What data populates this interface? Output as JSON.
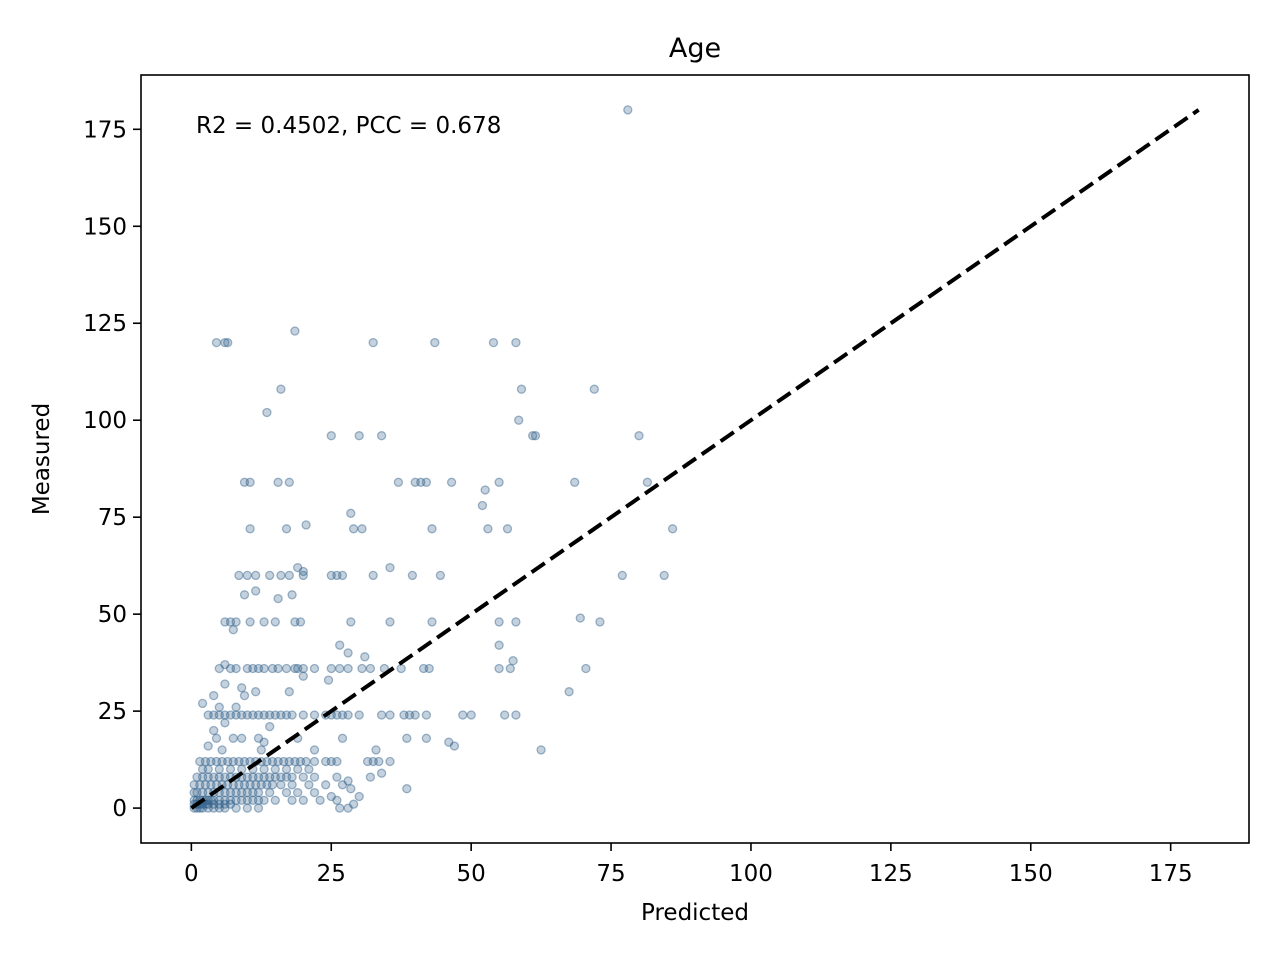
{
  "chart_data": {
    "type": "scatter",
    "title": "Age",
    "xlabel": "Predicted",
    "ylabel": "Measured",
    "xlim": [
      -9,
      189
    ],
    "ylim": [
      -9,
      189
    ],
    "xticks": [
      0,
      25,
      50,
      75,
      100,
      125,
      150,
      175
    ],
    "yticks": [
      0,
      25,
      50,
      75,
      100,
      125,
      150,
      175
    ],
    "annotation": "R2 = 0.4502, PCC = 0.678",
    "grid": false,
    "legend": "none",
    "point_color": "#2e5f8a",
    "reference_line": {
      "style": "dashed",
      "color": "#000000",
      "from": [
        0,
        0
      ],
      "to": [
        180,
        180
      ]
    },
    "series": [
      {
        "points": [
          [
            78,
            180
          ],
          [
            4.5,
            120
          ],
          [
            6,
            120
          ],
          [
            6.5,
            120
          ],
          [
            18.5,
            123
          ],
          [
            32.5,
            120
          ],
          [
            43.5,
            120
          ],
          [
            54,
            120
          ],
          [
            58,
            120
          ],
          [
            16,
            108
          ],
          [
            59,
            108
          ],
          [
            72,
            108
          ],
          [
            13.5,
            102
          ],
          [
            58.5,
            100
          ],
          [
            25,
            96
          ],
          [
            30,
            96
          ],
          [
            34,
            96
          ],
          [
            61,
            96
          ],
          [
            61.5,
            96
          ],
          [
            80,
            96
          ],
          [
            9.5,
            84
          ],
          [
            10.5,
            84
          ],
          [
            15.5,
            84
          ],
          [
            17.5,
            84
          ],
          [
            37,
            84
          ],
          [
            40,
            84
          ],
          [
            41,
            84
          ],
          [
            42,
            84
          ],
          [
            46.5,
            84
          ],
          [
            55,
            84
          ],
          [
            68.5,
            84
          ],
          [
            81.5,
            84
          ],
          [
            52.5,
            82
          ],
          [
            52,
            78
          ],
          [
            28.5,
            76
          ],
          [
            10.5,
            72
          ],
          [
            17,
            72
          ],
          [
            20.5,
            73
          ],
          [
            29,
            72
          ],
          [
            30.5,
            72
          ],
          [
            43,
            72
          ],
          [
            53,
            72
          ],
          [
            56.5,
            72
          ],
          [
            86,
            72
          ],
          [
            19,
            62
          ],
          [
            20,
            61
          ],
          [
            35.5,
            62
          ],
          [
            8.5,
            60
          ],
          [
            10,
            60
          ],
          [
            11.5,
            60
          ],
          [
            14,
            60
          ],
          [
            16,
            60
          ],
          [
            17.5,
            60
          ],
          [
            20,
            60
          ],
          [
            25,
            60
          ],
          [
            26,
            60
          ],
          [
            27,
            60
          ],
          [
            32.5,
            60
          ],
          [
            39.5,
            60
          ],
          [
            44.5,
            60
          ],
          [
            77,
            60
          ],
          [
            84.5,
            60
          ],
          [
            11.5,
            56
          ],
          [
            9.5,
            55
          ],
          [
            18,
            55
          ],
          [
            15.5,
            54
          ],
          [
            6,
            48
          ],
          [
            7,
            48
          ],
          [
            8,
            48
          ],
          [
            10.5,
            48
          ],
          [
            13,
            48
          ],
          [
            15,
            48
          ],
          [
            18.5,
            48
          ],
          [
            19.5,
            48
          ],
          [
            28.5,
            48
          ],
          [
            35.5,
            48
          ],
          [
            43,
            48
          ],
          [
            55,
            48
          ],
          [
            58,
            48
          ],
          [
            69.5,
            49
          ],
          [
            73,
            48
          ],
          [
            7.5,
            46
          ],
          [
            26.5,
            42
          ],
          [
            55,
            42
          ],
          [
            28,
            40
          ],
          [
            31,
            39
          ],
          [
            57.5,
            38
          ],
          [
            5,
            36
          ],
          [
            6,
            37
          ],
          [
            7,
            36
          ],
          [
            8,
            36
          ],
          [
            10,
            36
          ],
          [
            11,
            36
          ],
          [
            12,
            36
          ],
          [
            13,
            36
          ],
          [
            14.5,
            36
          ],
          [
            15.5,
            36
          ],
          [
            17,
            36
          ],
          [
            18.5,
            36
          ],
          [
            19,
            36
          ],
          [
            20,
            36
          ],
          [
            22,
            36
          ],
          [
            25,
            36
          ],
          [
            26.5,
            36
          ],
          [
            28,
            36
          ],
          [
            30.5,
            36
          ],
          [
            32,
            36
          ],
          [
            34.5,
            36
          ],
          [
            37.5,
            36
          ],
          [
            41.5,
            36
          ],
          [
            42.5,
            36
          ],
          [
            55,
            36
          ],
          [
            57,
            36
          ],
          [
            70.5,
            36
          ],
          [
            20,
            34
          ],
          [
            24.5,
            33
          ],
          [
            6,
            32
          ],
          [
            9,
            31
          ],
          [
            11.5,
            30
          ],
          [
            17.5,
            30
          ],
          [
            67.5,
            30
          ],
          [
            4,
            29
          ],
          [
            9.5,
            29
          ],
          [
            2,
            27
          ],
          [
            5,
            26
          ],
          [
            8,
            26
          ],
          [
            3,
            24
          ],
          [
            4,
            24
          ],
          [
            5,
            24
          ],
          [
            6,
            24
          ],
          [
            7,
            24
          ],
          [
            8,
            24
          ],
          [
            9,
            24
          ],
          [
            10,
            24
          ],
          [
            11,
            24
          ],
          [
            12,
            24
          ],
          [
            13,
            24
          ],
          [
            14,
            24
          ],
          [
            15,
            24
          ],
          [
            16,
            24
          ],
          [
            17,
            24
          ],
          [
            18,
            24
          ],
          [
            20,
            24
          ],
          [
            22,
            24
          ],
          [
            24,
            24
          ],
          [
            25,
            24
          ],
          [
            26,
            24
          ],
          [
            27,
            24
          ],
          [
            28,
            24
          ],
          [
            30,
            24
          ],
          [
            34,
            24
          ],
          [
            35.5,
            24
          ],
          [
            38,
            24
          ],
          [
            39,
            24
          ],
          [
            40,
            24
          ],
          [
            42,
            24
          ],
          [
            48.5,
            24
          ],
          [
            50,
            24
          ],
          [
            56,
            24
          ],
          [
            58,
            24
          ],
          [
            6,
            22
          ],
          [
            4,
            20
          ],
          [
            14,
            21
          ],
          [
            4.5,
            18
          ],
          [
            7.5,
            18
          ],
          [
            9,
            18
          ],
          [
            12,
            18
          ],
          [
            13,
            17
          ],
          [
            19,
            18
          ],
          [
            27,
            18
          ],
          [
            38.5,
            18
          ],
          [
            42,
            18
          ],
          [
            46,
            17
          ],
          [
            47,
            16
          ],
          [
            62.5,
            15
          ],
          [
            33,
            15
          ],
          [
            22,
            15
          ],
          [
            3,
            16
          ],
          [
            5.5,
            15
          ],
          [
            12.5,
            15
          ],
          [
            1.5,
            12
          ],
          [
            2.5,
            12
          ],
          [
            3.5,
            12
          ],
          [
            4.5,
            12
          ],
          [
            5.5,
            12
          ],
          [
            6.5,
            12
          ],
          [
            7.5,
            12
          ],
          [
            8.5,
            12
          ],
          [
            9.5,
            12
          ],
          [
            10.5,
            12
          ],
          [
            11.5,
            12
          ],
          [
            12.5,
            12
          ],
          [
            13.5,
            12
          ],
          [
            14.5,
            12
          ],
          [
            15.5,
            12
          ],
          [
            16.5,
            12
          ],
          [
            17.5,
            12
          ],
          [
            18.5,
            12
          ],
          [
            19.5,
            12
          ],
          [
            20.5,
            12
          ],
          [
            22,
            12
          ],
          [
            24,
            12
          ],
          [
            25,
            12
          ],
          [
            26,
            12
          ],
          [
            31.5,
            12
          ],
          [
            32.5,
            12
          ],
          [
            33.5,
            12
          ],
          [
            35.5,
            12
          ],
          [
            2,
            10
          ],
          [
            3,
            10
          ],
          [
            5,
            10
          ],
          [
            7,
            10
          ],
          [
            9,
            10
          ],
          [
            11,
            10
          ],
          [
            13,
            10
          ],
          [
            15,
            10
          ],
          [
            17,
            10
          ],
          [
            19,
            10
          ],
          [
            21,
            10
          ],
          [
            1,
            8
          ],
          [
            2,
            8
          ],
          [
            3,
            8
          ],
          [
            4,
            8
          ],
          [
            5,
            8
          ],
          [
            6,
            8
          ],
          [
            7,
            8
          ],
          [
            8,
            8
          ],
          [
            9,
            8
          ],
          [
            10,
            8
          ],
          [
            11,
            8
          ],
          [
            12,
            8
          ],
          [
            13,
            8
          ],
          [
            14,
            8
          ],
          [
            15,
            8
          ],
          [
            16,
            8
          ],
          [
            17,
            8
          ],
          [
            18,
            8
          ],
          [
            20,
            8
          ],
          [
            22,
            8
          ],
          [
            26,
            8
          ],
          [
            28,
            7
          ],
          [
            32,
            8
          ],
          [
            34,
            9
          ],
          [
            0.5,
            6
          ],
          [
            1.5,
            6
          ],
          [
            2.5,
            6
          ],
          [
            3.5,
            6
          ],
          [
            4.5,
            6
          ],
          [
            5.5,
            6
          ],
          [
            6.5,
            6
          ],
          [
            7.5,
            6
          ],
          [
            8.5,
            6
          ],
          [
            9.5,
            6
          ],
          [
            10.5,
            6
          ],
          [
            11.5,
            6
          ],
          [
            12.5,
            6
          ],
          [
            13.5,
            6
          ],
          [
            14.5,
            6
          ],
          [
            16,
            6
          ],
          [
            18,
            6
          ],
          [
            21,
            6
          ],
          [
            24,
            6
          ],
          [
            27,
            6
          ],
          [
            28.5,
            5
          ],
          [
            38.5,
            5
          ],
          [
            0.5,
            4
          ],
          [
            1,
            4
          ],
          [
            2,
            4
          ],
          [
            3,
            4
          ],
          [
            4,
            4
          ],
          [
            5,
            4
          ],
          [
            6,
            4
          ],
          [
            7,
            4
          ],
          [
            8,
            4
          ],
          [
            9,
            4
          ],
          [
            10,
            4
          ],
          [
            11,
            4
          ],
          [
            12,
            4
          ],
          [
            14,
            4
          ],
          [
            17,
            4
          ],
          [
            19,
            4
          ],
          [
            22,
            4
          ],
          [
            25,
            3
          ],
          [
            30,
            3
          ],
          [
            0.5,
            2
          ],
          [
            1,
            2
          ],
          [
            1.5,
            2
          ],
          [
            2,
            2
          ],
          [
            2.5,
            2
          ],
          [
            3,
            2
          ],
          [
            3.5,
            2
          ],
          [
            4,
            2
          ],
          [
            5,
            2
          ],
          [
            6,
            2
          ],
          [
            7,
            2
          ],
          [
            8,
            2
          ],
          [
            9,
            2
          ],
          [
            10,
            2
          ],
          [
            11,
            2
          ],
          [
            12,
            2
          ],
          [
            13,
            2
          ],
          [
            15,
            2
          ],
          [
            18,
            2
          ],
          [
            20,
            2
          ],
          [
            23,
            2
          ],
          [
            26,
            2
          ],
          [
            29,
            1
          ],
          [
            0.5,
            1
          ],
          [
            1,
            1
          ],
          [
            1.5,
            1
          ],
          [
            2,
            1
          ],
          [
            2.5,
            1
          ],
          [
            3,
            1
          ],
          [
            4,
            1
          ],
          [
            5,
            1
          ],
          [
            6,
            1
          ],
          [
            7,
            1
          ],
          [
            0.5,
            0
          ],
          [
            1,
            0
          ],
          [
            1.5,
            0
          ],
          [
            2,
            0
          ],
          [
            3,
            0
          ],
          [
            4,
            0
          ],
          [
            5,
            0
          ],
          [
            6,
            0
          ],
          [
            8,
            0
          ],
          [
            10,
            0
          ],
          [
            12,
            0
          ],
          [
            26.5,
            0
          ],
          [
            28,
            0
          ]
        ]
      }
    ]
  }
}
